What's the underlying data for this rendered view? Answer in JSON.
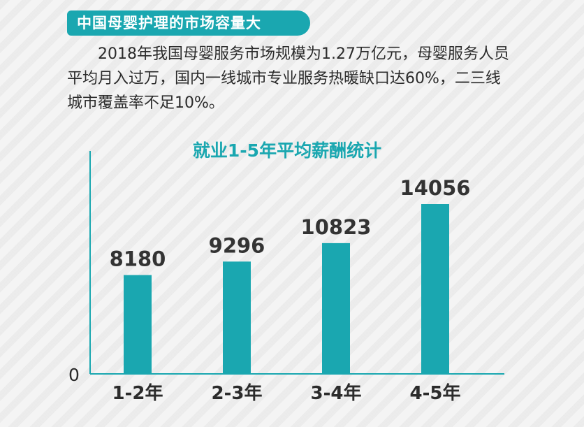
{
  "header": {
    "title": "中国母婴护理的市场容量大"
  },
  "intro": {
    "text": "2018年我国母婴服务市场规模为1.27万亿元，母婴服务人员平均月入过万，国内一线城市专业服务热暖缺口达60%，二三线城市覆盖率不足10%。"
  },
  "colors": {
    "accent": "#1aa7b0",
    "bar": "#1aa7b0",
    "text": "#2b2b2b"
  },
  "chart_data": {
    "type": "bar",
    "title": "就业1-5年平均薪酬统计",
    "categories": [
      "1-2年",
      "2-3年",
      "3-4年",
      "4-5年"
    ],
    "values": [
      8180,
      9296,
      10823,
      14056
    ],
    "ylim": [
      0,
      14056
    ],
    "yticks": [
      "0"
    ],
    "grid": false
  }
}
